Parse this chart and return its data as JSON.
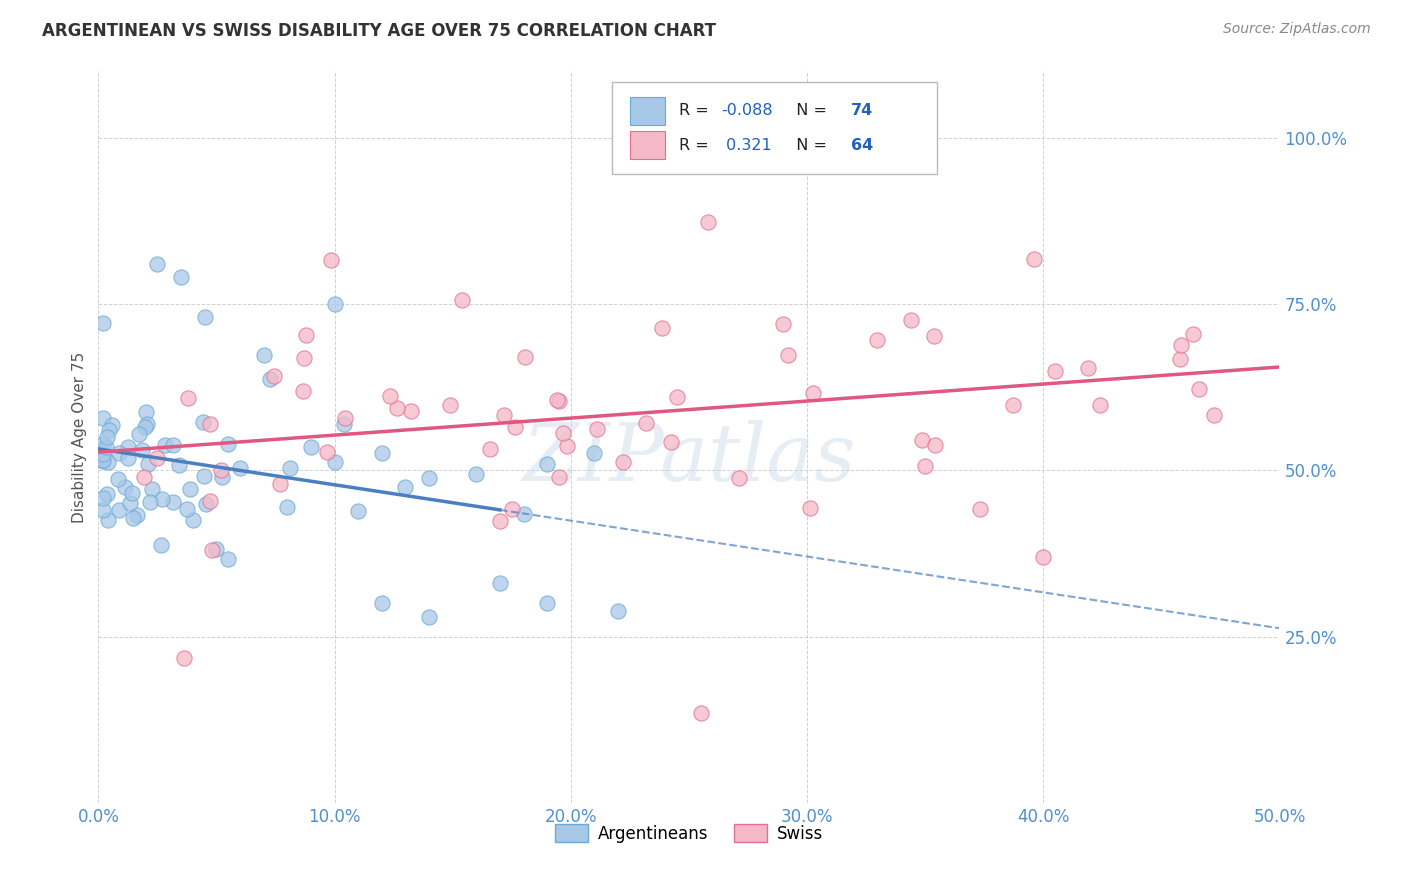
{
  "title": "ARGENTINEAN VS SWISS DISABILITY AGE OVER 75 CORRELATION CHART",
  "source": "Source: ZipAtlas.com",
  "ylabel": "Disability Age Over 75",
  "xlim": [
    0.0,
    0.5
  ],
  "ylim": [
    0.0,
    1.1
  ],
  "ytick_vals": [
    0.25,
    0.5,
    0.75,
    1.0
  ],
  "ytick_labels": [
    "25.0%",
    "50.0%",
    "75.0%",
    "100.0%"
  ],
  "xtick_vals": [
    0.0,
    0.1,
    0.2,
    0.3,
    0.4,
    0.5
  ],
  "xtick_labels": [
    "0.0%",
    "10.0%",
    "20.0%",
    "30.0%",
    "40.0%",
    "50.0%"
  ],
  "argentinean_color": "#a8c8e8",
  "swiss_color": "#f5b8c8",
  "argentinean_edge_color": "#6aaad4",
  "swiss_edge_color": "#e07090",
  "argentinean_line_color": "#4a7fc0",
  "swiss_line_color": "#e05880",
  "R_argentinean": -0.088,
  "N_argentinean": 74,
  "R_swiss": 0.321,
  "N_swiss": 64,
  "legend_labels": [
    "Argentineans",
    "Swiss"
  ],
  "watermark": "ZIPatlas",
  "background_color": "#ffffff",
  "tick_color": "#5090d0",
  "grid_color": "#cccccc"
}
